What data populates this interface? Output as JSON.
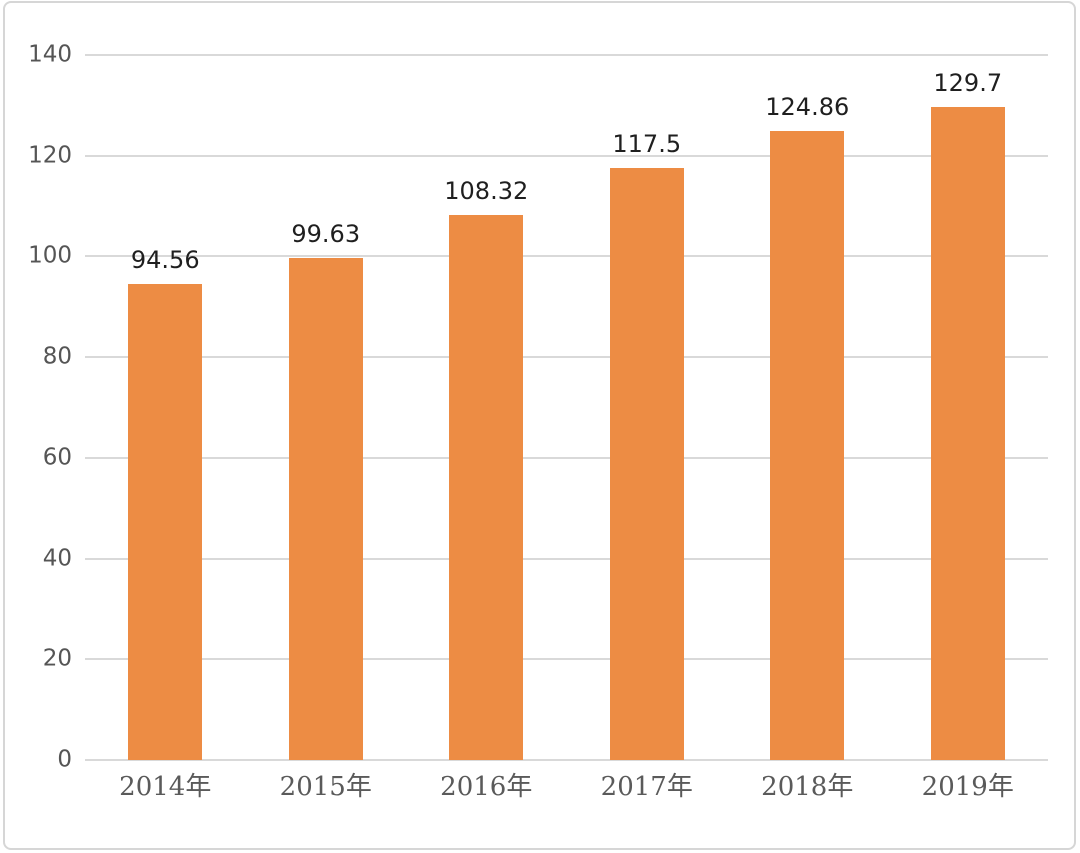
{
  "chart_data": {
    "type": "bar",
    "categories": [
      "2014年",
      "2015年",
      "2016年",
      "2017年",
      "2018年",
      "2019年"
    ],
    "values": [
      94.56,
      99.63,
      108.32,
      117.5,
      124.86,
      129.7
    ],
    "data_labels": [
      "94.56",
      "99.63",
      "108.32",
      "117.5",
      "124.86",
      "129.7"
    ],
    "title": "",
    "xlabel": "",
    "ylabel": "",
    "ylim": [
      0,
      140
    ],
    "yticks": [
      0,
      20,
      40,
      60,
      80,
      100,
      120,
      140
    ],
    "grid": "horizontal",
    "legend_position": "none",
    "bar_color": "#ed8c44",
    "gridline_color": "#d9d9d9",
    "y_tick_label_color": "#555555",
    "x_tick_label_color": "#5a5a5a",
    "data_label_color": "#1f1f1f",
    "frame_border_color": "#d6d6d6",
    "background_color": "#ffffff"
  }
}
